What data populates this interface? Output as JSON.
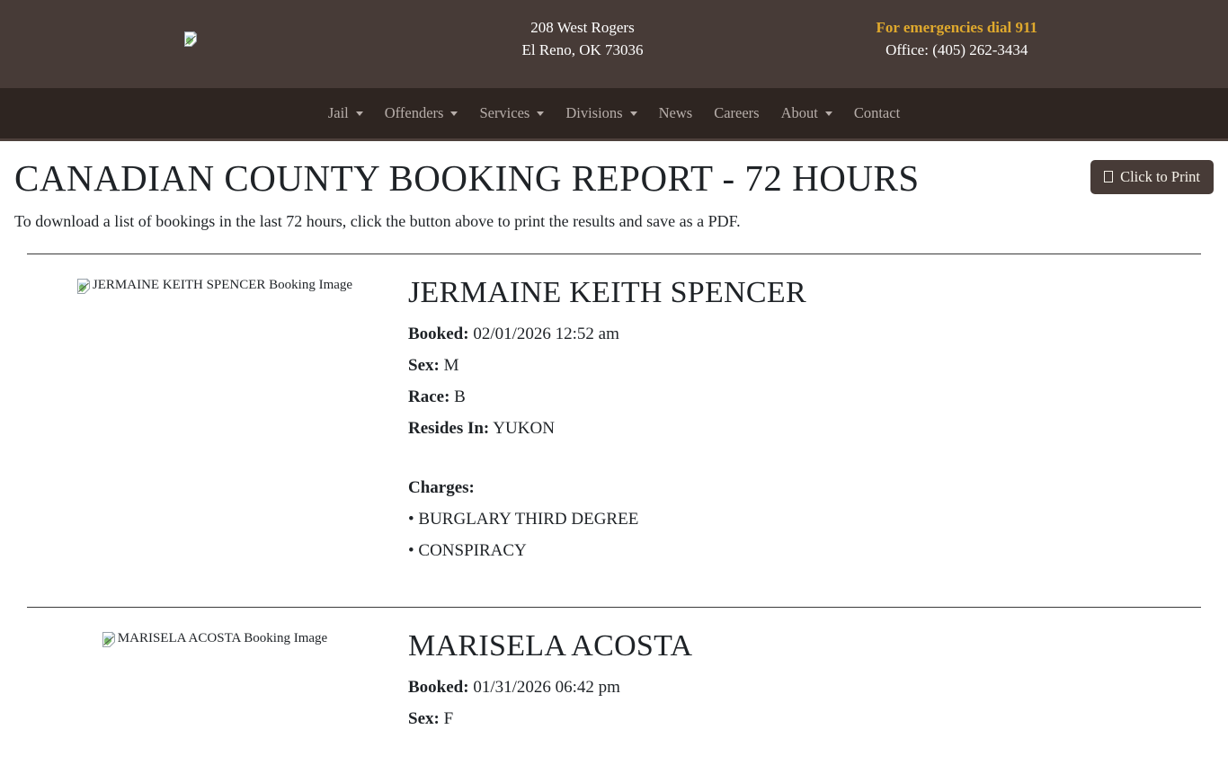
{
  "header": {
    "address_line1": "208 West Rogers",
    "address_line2": "El Reno, OK 73036",
    "emergency_text": "For emergencies dial 911",
    "office_text": "Office: (405) 262-3434"
  },
  "nav": {
    "items": [
      {
        "label": "Jail",
        "has_dropdown": true
      },
      {
        "label": "Offenders",
        "has_dropdown": true
      },
      {
        "label": "Services",
        "has_dropdown": true
      },
      {
        "label": "Divisions",
        "has_dropdown": true
      },
      {
        "label": "News",
        "has_dropdown": false
      },
      {
        "label": "Careers",
        "has_dropdown": false
      },
      {
        "label": "About",
        "has_dropdown": true
      },
      {
        "label": "Contact",
        "has_dropdown": false
      }
    ]
  },
  "page": {
    "title": "CANADIAN COUNTY BOOKING REPORT - 72 HOURS",
    "print_button_label": "Click to Print",
    "intro": "To download a list of bookings in the last 72 hours, click the button above to print the results and save as a PDF."
  },
  "labels": {
    "booked": "Booked:",
    "sex": "Sex:",
    "race": "Race:",
    "resides_in": "Resides In:",
    "charges": "Charges:",
    "bullet": "•"
  },
  "records": [
    {
      "name": "JERMAINE KEITH SPENCER",
      "image_alt": "JERMAINE KEITH SPENCER Booking Image",
      "booked": "02/01/2026 12:52 am",
      "sex": "M",
      "race": "B",
      "resides_in": "YUKON",
      "charges": [
        "BURGLARY THIRD DEGREE",
        "CONSPIRACY"
      ]
    },
    {
      "name": "MARISELA ACOSTA",
      "image_alt": "MARISELA ACOSTA Booking Image",
      "booked": "01/31/2026 06:42 pm",
      "sex": "F"
    }
  ],
  "colors": {
    "header_bg": "#473b37",
    "nav_bg": "#2e2521",
    "accent_gold": "#dfa92d",
    "button_bg": "#473b37"
  }
}
